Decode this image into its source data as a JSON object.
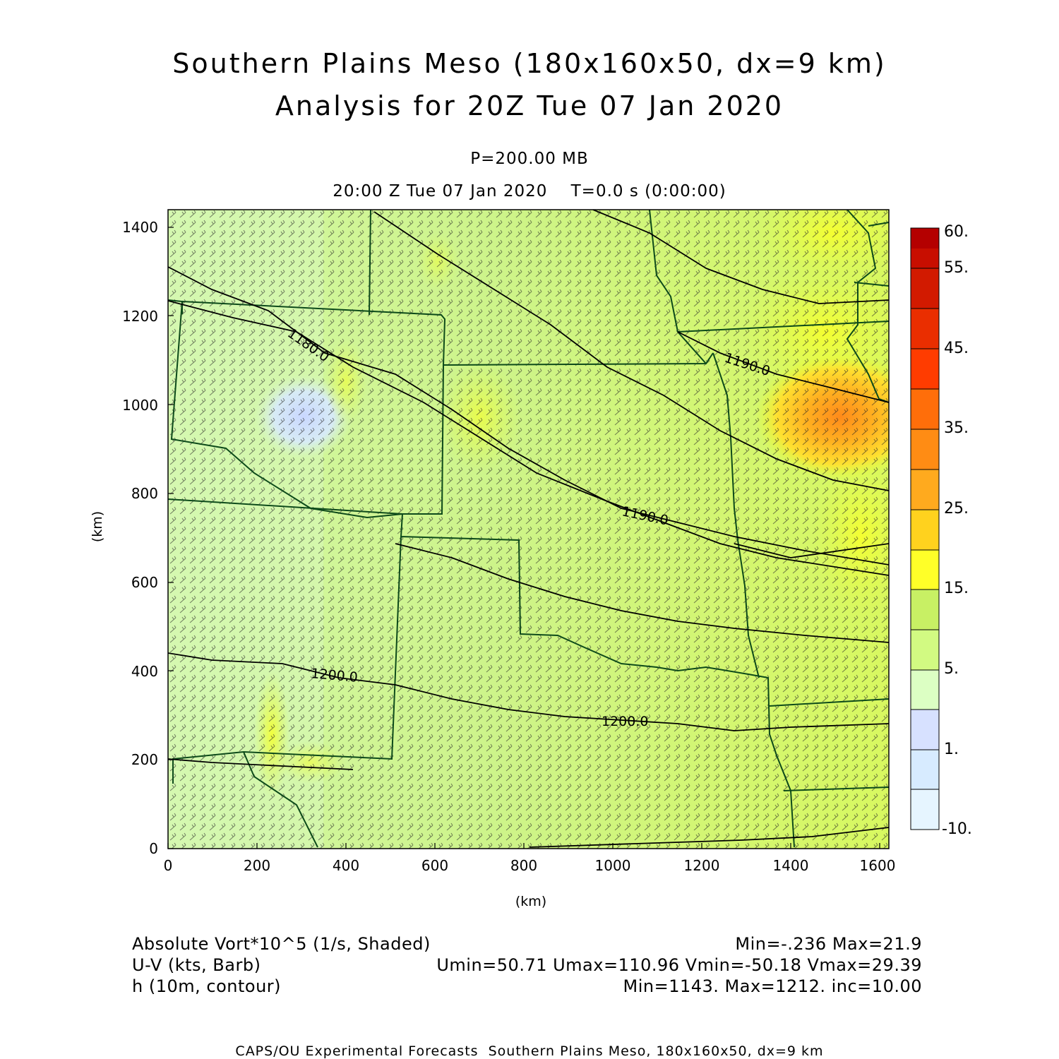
{
  "title": {
    "line1": "Southern Plains Meso (180x160x50, dx=9 km)",
    "line2": "Analysis for 20Z Tue 07 Jan 2020"
  },
  "subtitle": {
    "level": "P=200.00 MB",
    "time": "20:00 Z Tue 07 Jan 2020    T=0.0 s (0:00:00)"
  },
  "axes": {
    "x_label": "(km)",
    "y_label": "(km)",
    "x_ticks": [
      "0",
      "200",
      "400",
      "600",
      "800",
      "1000",
      "1200",
      "1400",
      "1600"
    ],
    "y_ticks": [
      "0",
      "200",
      "400",
      "600",
      "800",
      "1000",
      "1200",
      "1400"
    ],
    "x_range_km": [
      0,
      1620
    ],
    "y_range_km": [
      0,
      1440
    ]
  },
  "colorbar": {
    "labels": [
      "60.",
      "55.",
      "45.",
      "35.",
      "25.",
      "15.",
      "5.",
      "1.",
      "-10."
    ],
    "colors": [
      "#b40000",
      "#d21a00",
      "#ea2e00",
      "#ff3c00",
      "#ff6e0a",
      "#ff8c14",
      "#ffaa1e",
      "#ffd21e",
      "#ffff28",
      "#e6ff32",
      "#c8f064",
      "#d2fa82",
      "#d7ff9b",
      "#dcffc3",
      "#d7e1ff",
      "#d7ebff",
      "#e6f5ff"
    ]
  },
  "contour_labels": [
    "1180.0",
    "1190.0",
    "1190.0",
    "1200.0",
    "1200.0"
  ],
  "legend": {
    "field1_name": "Absolute Vort*10^5 (1/s, Shaded)",
    "field1_stats": "Min=-.236 Max=21.9",
    "field2_name": "U-V (kts, Barb)",
    "field2_stats": "Umin=50.71 Umax=110.96 Vmin=-50.18 Vmax=29.39",
    "field3_name": "h (10m, contour)",
    "field3_stats": "Min=1143. Max=1212. inc=10.00"
  },
  "footer": "CAPS/OU Experimental Forecasts  Southern Plains Meso, 180x160x50, dx=9 km"
}
